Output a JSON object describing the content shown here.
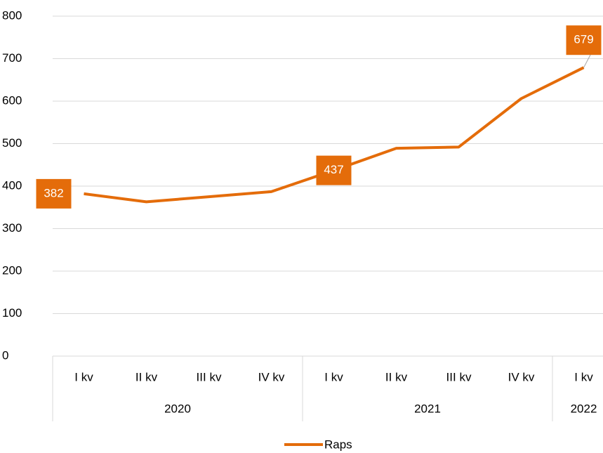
{
  "chart_data": {
    "type": "line",
    "groups": [
      {
        "label": "2020",
        "categories": [
          "I kv",
          "II kv",
          "III kv",
          "IV kv"
        ]
      },
      {
        "label": "2021",
        "categories": [
          "I kv",
          "II kv",
          "III kv",
          "IV kv"
        ]
      },
      {
        "label": "2022",
        "categories": [
          "I kv"
        ]
      }
    ],
    "series": [
      {
        "name": "Raps",
        "color": "#e46c0a",
        "values": [
          382,
          363,
          375,
          387,
          437,
          489,
          492,
          606,
          679
        ],
        "value_labels": [
          "382",
          null,
          null,
          null,
          "437",
          null,
          null,
          null,
          "679"
        ]
      }
    ],
    "ylim": [
      0,
      800
    ],
    "yticks": [
      0,
      100,
      200,
      300,
      400,
      500,
      600,
      700,
      800
    ],
    "grid": true,
    "legend": "bottom"
  }
}
